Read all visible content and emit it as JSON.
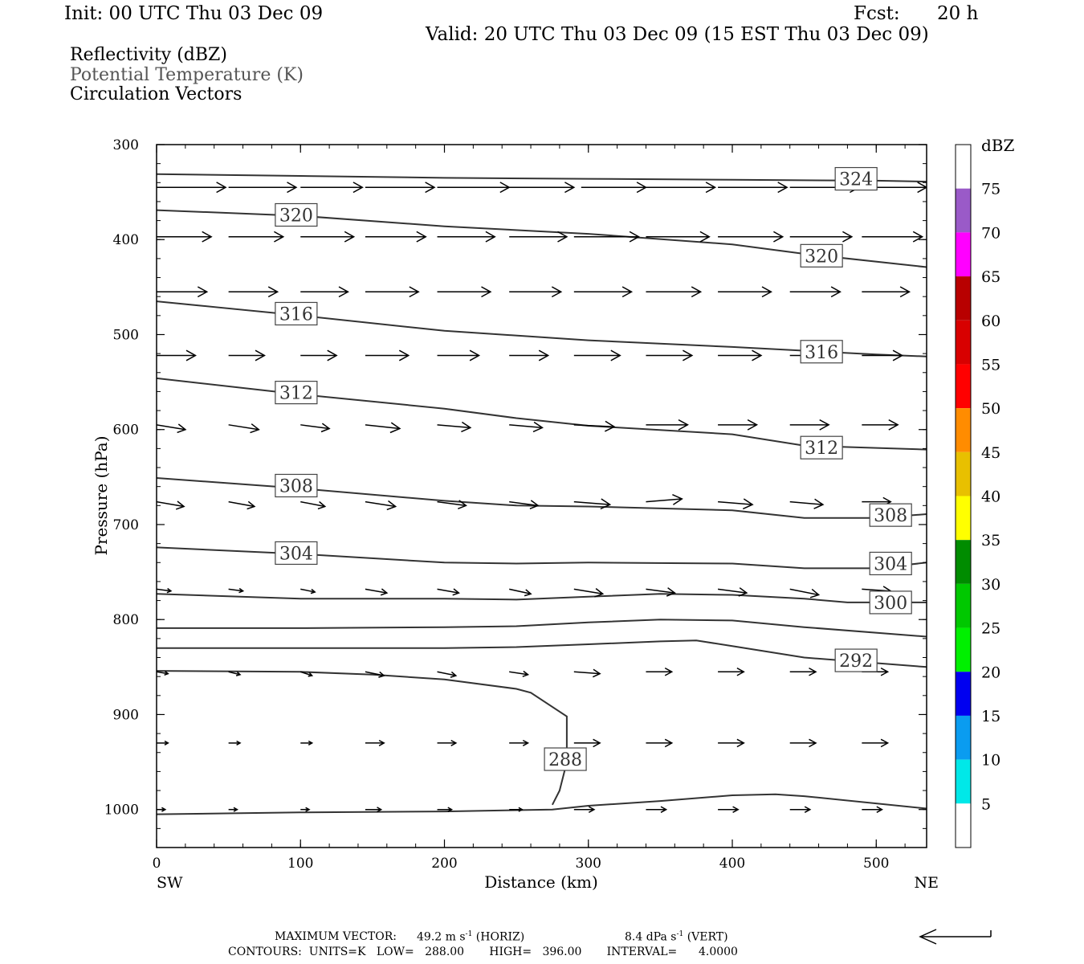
{
  "header": {
    "init": "Init: 00 UTC Thu 03 Dec 09",
    "fcst_label": "Fcst:",
    "fcst_value": "20 h",
    "valid": "Valid: 20 UTC Thu 03 Dec 09 (15 EST Thu 03 Dec 09)"
  },
  "fields": {
    "reflectivity": "Reflectivity (dBZ)",
    "theta": "Potential Temperature (K)",
    "vectors": "Circulation Vectors"
  },
  "footer": {
    "max_vector_label": "MAXIMUM VECTOR:",
    "max_horiz": "49.2 m s",
    "horiz_tag": "(HORIZ)",
    "max_vert": "8.4 dPa s",
    "vert_tag": "(VERT)",
    "exp": "-1",
    "contours": "CONTOURS:  UNITS=K   LOW=   288.00       HIGH=   396.00       INTERVAL=      4.0000"
  },
  "chart_data": {
    "type": "line",
    "xlabel": "Distance (km)",
    "ylabel": "Pressure (hPa)",
    "x_left_label": "SW",
    "x_right_label": "NE",
    "xlim": [
      0,
      535
    ],
    "ylim": [
      300,
      1040
    ],
    "xticks": [
      "0",
      "100",
      "200",
      "300",
      "400",
      "500"
    ],
    "xtick_values": [
      0,
      100,
      200,
      300,
      400,
      500
    ],
    "yticks": [
      "300",
      "400",
      "500",
      "600",
      "700",
      "800",
      "900",
      "1000"
    ],
    "ytick_values": [
      300,
      400,
      500,
      600,
      700,
      800,
      900,
      1000
    ],
    "colorbar": {
      "title": "dBZ",
      "labels": [
        "5",
        "10",
        "15",
        "20",
        "25",
        "30",
        "35",
        "40",
        "45",
        "50",
        "55",
        "60",
        "65",
        "70",
        "75"
      ],
      "colors": [
        "#ffffff",
        "#00e8e8",
        "#0a9cf0",
        "#0000f0",
        "#00f000",
        "#00c800",
        "#008c00",
        "#ffff00",
        "#e8c000",
        "#ff8c00",
        "#ff0000",
        "#d80000",
        "#b80000",
        "#ff00ff",
        "#9a5ac8",
        "#ffffff"
      ]
    },
    "series": [
      {
        "name": "320",
        "x": [
          0,
          100,
          200,
          300,
          400,
          450,
          535
        ],
        "y": [
          369,
          375,
          386,
          394,
          405,
          415,
          429
        ],
        "labels": [
          {
            "text": "320",
            "x": 97,
            "y": 374
          },
          {
            "text": "320",
            "x": 462,
            "y": 417
          }
        ]
      },
      {
        "name": "324",
        "x": [
          0,
          100,
          200,
          300,
          400,
          500,
          535
        ],
        "y": [
          331,
          333,
          335,
          336,
          337,
          338,
          339
        ],
        "labels": [
          {
            "text": "324",
            "x": 486,
            "y": 336
          }
        ]
      },
      {
        "name": "316",
        "x": [
          0,
          100,
          200,
          300,
          400,
          500,
          535
        ],
        "y": [
          465,
          480,
          496,
          506,
          513,
          521,
          523
        ],
        "labels": [
          {
            "text": "316",
            "x": 97,
            "y": 478
          },
          {
            "text": "316",
            "x": 462,
            "y": 518
          }
        ]
      },
      {
        "name": "312",
        "x": [
          0,
          100,
          200,
          250,
          300,
          400,
          450,
          535
        ],
        "y": [
          546,
          563,
          578,
          588,
          596,
          605,
          617,
          621
        ],
        "labels": [
          {
            "text": "312",
            "x": 97,
            "y": 561
          },
          {
            "text": "312",
            "x": 462,
            "y": 619
          }
        ]
      },
      {
        "name": "308",
        "x": [
          0,
          100,
          200,
          250,
          300,
          400,
          450,
          500,
          535
        ],
        "y": [
          651,
          662,
          675,
          680,
          681,
          685,
          693,
          693,
          689
        ],
        "labels": [
          {
            "text": "308",
            "x": 97,
            "y": 659
          },
          {
            "text": "308",
            "x": 510,
            "y": 690
          }
        ]
      },
      {
        "name": "304",
        "x": [
          0,
          100,
          200,
          250,
          300,
          400,
          450,
          500,
          535
        ],
        "y": [
          724,
          731,
          740,
          741,
          740,
          741,
          746,
          746,
          740
        ],
        "labels": [
          {
            "text": "304",
            "x": 97,
            "y": 730
          },
          {
            "text": "304",
            "x": 510,
            "y": 741
          }
        ]
      },
      {
        "name": "300",
        "x": [
          0,
          100,
          200,
          250,
          300,
          350,
          400,
          450,
          480,
          535
        ],
        "y": [
          773,
          778,
          778,
          779,
          776,
          773,
          774,
          778,
          782,
          782
        ],
        "labels": [
          {
            "text": "300",
            "x": 510,
            "y": 782
          }
        ]
      },
      {
        "name": "",
        "x": [
          0,
          100,
          200,
          250,
          300,
          350,
          400,
          450,
          535
        ],
        "y": [
          809,
          809,
          808,
          807,
          803,
          800,
          801,
          808,
          818
        ],
        "labels": []
      },
      {
        "name": "292",
        "x": [
          0,
          100,
          200,
          250,
          300,
          350,
          375,
          400,
          450,
          535
        ],
        "y": [
          830,
          830,
          830,
          829,
          826,
          823,
          822,
          828,
          840,
          850
        ],
        "labels": [
          {
            "text": "292",
            "x": 486,
            "y": 843
          }
        ]
      },
      {
        "name": "288",
        "x": [
          0,
          100,
          150,
          200,
          250,
          260,
          285,
          285,
          280,
          275
        ],
        "y": [
          854,
          855,
          858,
          863,
          873,
          877,
          902,
          950,
          980,
          995
        ],
        "labels": [
          {
            "text": "288",
            "x": 284,
            "y": 947
          }
        ]
      },
      {
        "name": "",
        "x": [
          0,
          100,
          200,
          275,
          300,
          350,
          400,
          430,
          450,
          535
        ],
        "y": [
          1005,
          1003,
          1002,
          1000,
          996,
          991,
          985,
          984,
          986,
          999
        ],
        "labels": []
      }
    ],
    "vector_rows": [
      {
        "p": 345,
        "x": [
          0,
          50,
          100,
          145,
          195,
          245,
          295,
          340,
          390,
          440,
          490
        ],
        "x_end": [
          48,
          97,
          143,
          193,
          245,
          290,
          340,
          388,
          438,
          488,
          535
        ],
        "dp": [
          0,
          0,
          0,
          0,
          0,
          0,
          0,
          0,
          0,
          0,
          0
        ]
      },
      {
        "p": 397,
        "x": [
          0,
          50,
          100,
          145,
          195,
          245,
          290,
          340,
          390,
          440,
          490
        ],
        "x_end": [
          38,
          88,
          137,
          187,
          235,
          285,
          335,
          384,
          435,
          483,
          532
        ],
        "dp": [
          0,
          0,
          0,
          0,
          0,
          0,
          0,
          0,
          0,
          0,
          0
        ]
      },
      {
        "p": 455,
        "x": [
          0,
          50,
          100,
          145,
          195,
          245,
          290,
          340,
          390,
          440,
          490
        ],
        "x_end": [
          35,
          84,
          133,
          182,
          232,
          281,
          330,
          378,
          427,
          475,
          523
        ],
        "dp": [
          0,
          0,
          0,
          0,
          0,
          0,
          0,
          0,
          0,
          0,
          0
        ]
      },
      {
        "p": 522,
        "x": [
          0,
          50,
          100,
          145,
          195,
          245,
          290,
          340,
          390,
          440,
          490
        ],
        "x_end": [
          27,
          75,
          125,
          175,
          224,
          272,
          322,
          372,
          420,
          467,
          518
        ],
        "dp": [
          0,
          0,
          0,
          0,
          0,
          0,
          0,
          0,
          0,
          0,
          0
        ]
      },
      {
        "p": 595,
        "x": [
          0,
          50,
          100,
          145,
          195,
          245,
          290,
          340,
          390,
          440,
          490
        ],
        "x_end": [
          20,
          71,
          120,
          169,
          218,
          268,
          318,
          369,
          417,
          467,
          515
        ],
        "dp": [
          5,
          5,
          4,
          4,
          3,
          3,
          2,
          0,
          0,
          0,
          0
        ]
      },
      {
        "p": 676,
        "x": [
          0,
          50,
          100,
          145,
          195,
          245,
          290,
          340,
          390,
          440,
          490
        ],
        "x_end": [
          19,
          68,
          117,
          166,
          215,
          265,
          315,
          365,
          414,
          463,
          510
        ],
        "dp": [
          5,
          5,
          5,
          5,
          4,
          4,
          3,
          -3,
          3,
          3,
          0
        ]
      },
      {
        "p": 768,
        "x": [
          0,
          50,
          100,
          145,
          195,
          245,
          290,
          340,
          390,
          440,
          490
        ],
        "x_end": [
          10,
          60,
          110,
          160,
          210,
          260,
          310,
          360,
          410,
          460,
          510
        ],
        "dp": [
          2,
          2,
          3,
          4,
          4,
          5,
          5,
          4,
          4,
          6,
          2
        ]
      },
      {
        "p": 855,
        "x": [
          0,
          50,
          100,
          145,
          195,
          245,
          290,
          340,
          390,
          440,
          490
        ],
        "x_end": [
          8,
          58,
          108,
          158,
          208,
          258,
          308,
          358,
          408,
          458,
          508
        ],
        "dp": [
          2,
          3,
          4,
          4,
          4,
          3,
          2,
          0,
          0,
          0,
          0
        ]
      },
      {
        "p": 930,
        "x": [
          0,
          50,
          100,
          145,
          195,
          245,
          290,
          340,
          390,
          440,
          490
        ],
        "x_end": [
          8,
          58,
          108,
          158,
          208,
          258,
          308,
          358,
          408,
          458,
          508
        ],
        "dp": [
          0,
          0,
          0,
          0,
          0,
          0,
          0,
          0,
          0,
          0,
          0
        ]
      },
      {
        "p": 1000,
        "x": [
          0,
          50,
          100,
          145,
          195,
          245,
          290,
          340,
          390,
          440,
          490
        ],
        "x_end": [
          6,
          56,
          106,
          156,
          205,
          254,
          304,
          354,
          404,
          454,
          504
        ],
        "dp": [
          0,
          0,
          0,
          0,
          0,
          0,
          0,
          0,
          0,
          0,
          0
        ]
      }
    ]
  }
}
